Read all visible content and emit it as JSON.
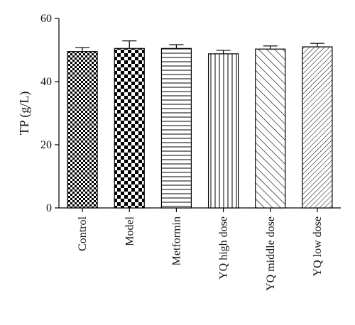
{
  "chart_data": {
    "type": "bar",
    "ylabel": "TP (g/L)",
    "xlabel": "",
    "ylim": [
      0,
      60
    ],
    "yticks": [
      0,
      20,
      40,
      60
    ],
    "categories": [
      "Control",
      "Model",
      "Metformin",
      "YQ high dose",
      "YQ middle dose",
      "YQ low dose"
    ],
    "values": [
      49.5,
      50.5,
      50.5,
      48.8,
      50.3,
      51.0
    ],
    "errors": [
      1.3,
      2.4,
      1.2,
      1.1,
      1.0,
      1.1
    ],
    "patterns": [
      "checker-small",
      "checker-large",
      "horizontal-lines",
      "vertical-lines",
      "diagonal-wide",
      "diagonal-dense"
    ],
    "bar_color": "#000000",
    "background": "#ffffff",
    "grid": false
  }
}
